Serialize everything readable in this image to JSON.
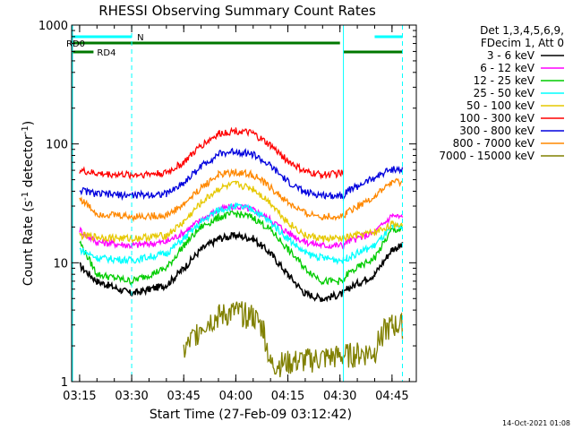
{
  "chart_data": {
    "type": "line",
    "title": "RHESSI Observing Summary Count Rates",
    "xlabel": "Start Time (27-Feb-09 03:12:42)",
    "ylabel": "Count Rate (s⁻¹ detector⁻¹)",
    "ylabel_parts": {
      "main": "Count Rate (s",
      "sup1": "-1",
      "mid": " detector",
      "sup2": "-1",
      "end": ")"
    },
    "y_scale": "log",
    "ylim": [
      1,
      1000
    ],
    "y_ticks": [
      {
        "value": 1,
        "label": "1"
      },
      {
        "value": 10,
        "label": "10"
      },
      {
        "value": 100,
        "label": "100"
      },
      {
        "value": 1000,
        "label": "1000"
      }
    ],
    "xlim": [
      "03:12:42",
      "04:52:00"
    ],
    "x_ticks": [
      "03:15",
      "03:30",
      "03:45",
      "04:00",
      "04:15",
      "04:30",
      "04:45"
    ],
    "legend_header": [
      "Det 1,3,4,5,6,9,",
      "FDecim 1, Att 0"
    ],
    "legend_placement": "right",
    "series": [
      {
        "name": "3 - 6 keV",
        "color": "#000000",
        "points": [
          [
            "03:15",
            9.5
          ],
          [
            "03:20",
            7
          ],
          [
            "03:30",
            5.5
          ],
          [
            "03:40",
            6.5
          ],
          [
            "03:45",
            9
          ],
          [
            "03:50",
            13
          ],
          [
            "03:55",
            16
          ],
          [
            "04:00",
            17
          ],
          [
            "04:05",
            16
          ],
          [
            "04:10",
            12
          ],
          [
            "04:15",
            8
          ],
          [
            "04:20",
            5.5
          ],
          [
            "04:25",
            5
          ],
          [
            "04:31",
            5.5
          ],
          [
            "04:32",
            6
          ],
          [
            "04:40",
            8
          ],
          [
            "04:45",
            13
          ],
          [
            "04:48",
            14
          ]
        ]
      },
      {
        "name": "6 - 12 keV",
        "color": "#ff00ff",
        "points": [
          [
            "03:15",
            19
          ],
          [
            "03:17",
            17
          ],
          [
            "03:20",
            15
          ],
          [
            "03:30",
            14
          ],
          [
            "03:40",
            15
          ],
          [
            "03:45",
            18
          ],
          [
            "03:50",
            23
          ],
          [
            "03:55",
            28
          ],
          [
            "04:00",
            30
          ],
          [
            "04:05",
            28
          ],
          [
            "04:10",
            23
          ],
          [
            "04:15",
            18
          ],
          [
            "04:20",
            15
          ],
          [
            "04:25",
            14
          ],
          [
            "04:31",
            14
          ],
          [
            "04:32",
            15
          ],
          [
            "04:40",
            18
          ],
          [
            "04:45",
            25
          ],
          [
            "04:48",
            24
          ]
        ]
      },
      {
        "name": "12 - 25 keV",
        "color": "#00cc00",
        "points": [
          [
            "03:15",
            15
          ],
          [
            "03:20",
            8
          ],
          [
            "03:30",
            7
          ],
          [
            "03:40",
            9
          ],
          [
            "03:45",
            14
          ],
          [
            "03:50",
            20
          ],
          [
            "03:55",
            24
          ],
          [
            "04:00",
            26
          ],
          [
            "04:05",
            24
          ],
          [
            "04:10",
            19
          ],
          [
            "04:15",
            13
          ],
          [
            "04:20",
            9
          ],
          [
            "04:25",
            7
          ],
          [
            "04:31",
            7
          ],
          [
            "04:32",
            8
          ],
          [
            "04:40",
            11
          ],
          [
            "04:45",
            19
          ],
          [
            "04:48",
            19
          ]
        ]
      },
      {
        "name": "25 - 50 keV",
        "color": "#00ffff",
        "points": [
          [
            "03:15",
            13
          ],
          [
            "03:20",
            11
          ],
          [
            "03:30",
            10.5
          ],
          [
            "03:40",
            12
          ],
          [
            "03:45",
            16
          ],
          [
            "03:50",
            22
          ],
          [
            "03:55",
            28
          ],
          [
            "04:00",
            30
          ],
          [
            "04:05",
            28
          ],
          [
            "04:10",
            22
          ],
          [
            "04:15",
            16
          ],
          [
            "04:20",
            12
          ],
          [
            "04:25",
            11
          ],
          [
            "04:31",
            10.5
          ],
          [
            "04:32",
            11
          ],
          [
            "04:40",
            14
          ],
          [
            "04:45",
            20
          ],
          [
            "04:48",
            20
          ]
        ]
      },
      {
        "name": "50 - 100 keV",
        "color": "#e6c800",
        "points": [
          [
            "03:15",
            17
          ],
          [
            "03:20",
            16.5
          ],
          [
            "03:30",
            16
          ],
          [
            "03:40",
            17
          ],
          [
            "03:45",
            22
          ],
          [
            "03:50",
            32
          ],
          [
            "03:55",
            42
          ],
          [
            "04:00",
            46
          ],
          [
            "04:05",
            42
          ],
          [
            "04:10",
            32
          ],
          [
            "04:15",
            22
          ],
          [
            "04:20",
            17
          ],
          [
            "04:25",
            16
          ],
          [
            "04:31",
            16
          ],
          [
            "04:32",
            16.5
          ],
          [
            "04:40",
            18
          ],
          [
            "04:45",
            21
          ],
          [
            "04:48",
            21
          ]
        ]
      },
      {
        "name": "100 - 300 keV",
        "color": "#ff0000",
        "points": [
          [
            "03:15",
            60
          ],
          [
            "03:20",
            56
          ],
          [
            "03:30",
            55
          ],
          [
            "03:40",
            57
          ],
          [
            "03:45",
            70
          ],
          [
            "03:50",
            97
          ],
          [
            "03:55",
            122
          ],
          [
            "04:00",
            130
          ],
          [
            "04:05",
            122
          ],
          [
            "04:10",
            97
          ],
          [
            "04:15",
            72
          ],
          [
            "04:20",
            58
          ],
          [
            "04:25",
            55
          ],
          [
            "04:31",
            57
          ]
        ]
      },
      {
        "name": "300 - 800 keV",
        "color": "#0000dd",
        "points": [
          [
            "03:15",
            41
          ],
          [
            "03:20",
            38
          ],
          [
            "03:30",
            37
          ],
          [
            "03:40",
            38
          ],
          [
            "03:45",
            47
          ],
          [
            "03:50",
            65
          ],
          [
            "03:55",
            82
          ],
          [
            "04:00",
            87
          ],
          [
            "04:05",
            82
          ],
          [
            "04:10",
            65
          ],
          [
            "04:15",
            48
          ],
          [
            "04:20",
            39
          ],
          [
            "04:25",
            37
          ],
          [
            "04:31",
            37
          ],
          [
            "04:32",
            40
          ],
          [
            "04:40",
            52
          ],
          [
            "04:45",
            62
          ],
          [
            "04:48",
            60
          ]
        ]
      },
      {
        "name": "800 - 7000 keV",
        "color": "#ff8800",
        "points": [
          [
            "03:15",
            35
          ],
          [
            "03:20",
            26
          ],
          [
            "03:30",
            24.5
          ],
          [
            "03:40",
            25
          ],
          [
            "03:45",
            31
          ],
          [
            "03:50",
            43
          ],
          [
            "03:55",
            55
          ],
          [
            "04:00",
            58
          ],
          [
            "04:05",
            55
          ],
          [
            "04:10",
            43
          ],
          [
            "04:15",
            32
          ],
          [
            "04:20",
            26
          ],
          [
            "04:25",
            24.5
          ],
          [
            "04:31",
            24.5
          ],
          [
            "04:32",
            27
          ],
          [
            "04:40",
            36
          ],
          [
            "04:45",
            48
          ],
          [
            "04:48",
            47
          ]
        ]
      },
      {
        "name": "7000 - 15000 keV",
        "color": "#808000",
        "points": [
          [
            "03:45",
            1.8
          ],
          [
            "03:50",
            3
          ],
          [
            "03:55",
            3.6
          ],
          [
            "04:00",
            3.9
          ],
          [
            "04:05",
            3.6
          ],
          [
            "04:08",
            2.8
          ],
          [
            "04:10",
            1.4
          ],
          [
            "04:40",
            1.8
          ],
          [
            "04:42",
            2.6
          ],
          [
            "04:45",
            3.0
          ],
          [
            "04:48",
            3.0
          ]
        ]
      }
    ],
    "flags": [
      {
        "label": "RD0",
        "color": "#007700",
        "segments": [
          [
            "03:12:42",
            "04:30"
          ]
        ]
      },
      {
        "label": "RD4",
        "color": "#007700",
        "segments": [
          [
            "03:12:42",
            "03:19"
          ],
          [
            "04:31",
            "04:48"
          ]
        ]
      },
      {
        "label": "N",
        "color": "#00ffff",
        "segments": [
          [
            "03:12:42",
            "03:30"
          ],
          [
            "04:40",
            "04:48"
          ]
        ]
      }
    ],
    "night_markers": [
      "03:30",
      "04:48"
    ],
    "saa_markers": [
      "04:31"
    ],
    "footer_date": "14-Oct-2021 01:08"
  }
}
